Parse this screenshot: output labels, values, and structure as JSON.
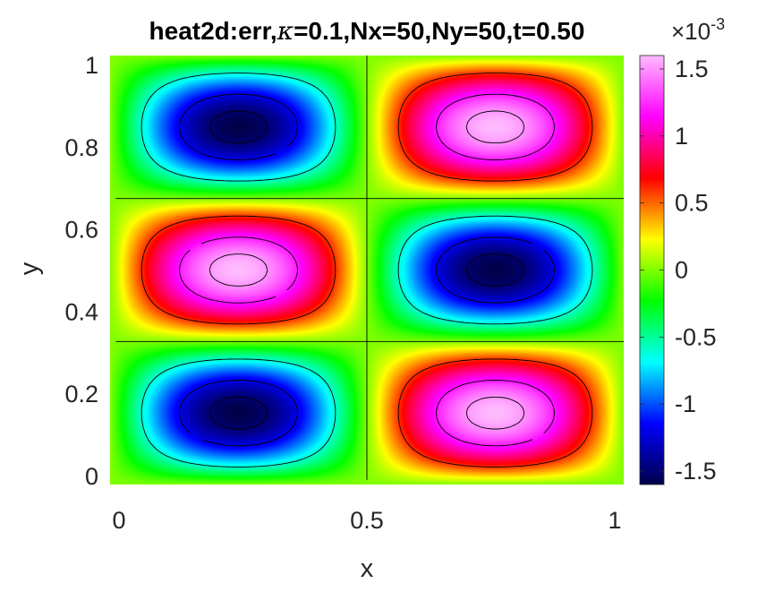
{
  "chart_data": {
    "type": "heatmap",
    "title_prefix": "heat2d:err,",
    "title_symbol": "κ",
    "title_suffix": "=0.1,Nx=50,Ny=50,t=0.50",
    "xlabel": "x",
    "ylabel": "y",
    "xlim": [
      0,
      1
    ],
    "ylim": [
      0,
      1
    ],
    "xticks": [
      0,
      0.5,
      1
    ],
    "xtick_labels": [
      "0",
      "0.5",
      "1"
    ],
    "yticks": [
      0,
      0.2,
      0.4,
      0.6,
      0.8,
      1
    ],
    "ytick_labels": [
      "0",
      "0.2",
      "0.4",
      "0.6",
      "0.8",
      "1"
    ],
    "field": {
      "expression": "-A * sin(2*pi*x) * sin(3*pi*y)",
      "amplitude": 0.0016,
      "kx_pi": 2,
      "ky_pi": 3
    },
    "contour_levels": [
      -0.0015,
      -0.0012,
      -0.0006,
      0,
      0.0006,
      0.0012,
      0.0015
    ],
    "colorbar": {
      "clim": [
        -0.0016,
        0.0016
      ],
      "ticks": [
        -1.5,
        -1,
        -0.5,
        0,
        0.5,
        1,
        1.5
      ],
      "tick_labels": [
        "-1.5",
        "-1",
        "-0.5",
        "0",
        "0.5",
        "1",
        "1.5"
      ],
      "exponent_prefix": "×10",
      "exponent_power": "-3",
      "colormap": "hsv-like",
      "colors": [
        "#00004a",
        "#0000ff",
        "#00ffff",
        "#00ff00",
        "#ffff00",
        "#ff0000",
        "#ff00ff",
        "#ffbbff"
      ]
    },
    "grid": false,
    "legend": "none"
  }
}
